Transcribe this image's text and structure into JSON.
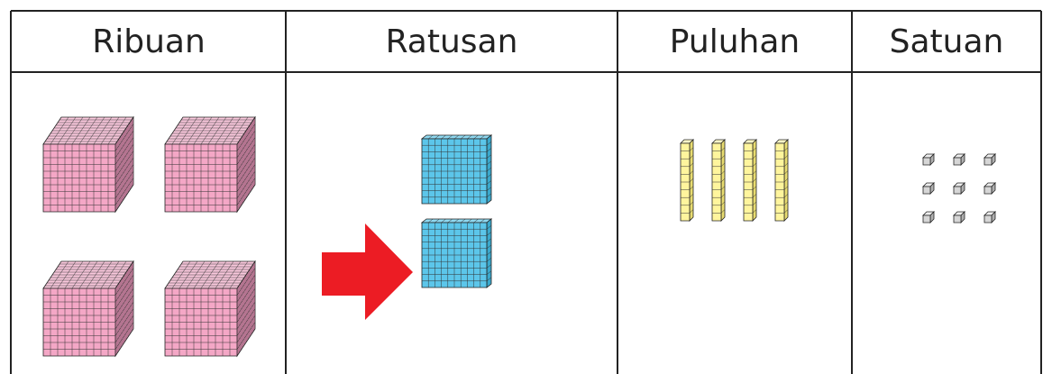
{
  "table": {
    "headers": [
      "Ribuan",
      "Ratusan",
      "Puluhan",
      "Satuan"
    ]
  }
}
